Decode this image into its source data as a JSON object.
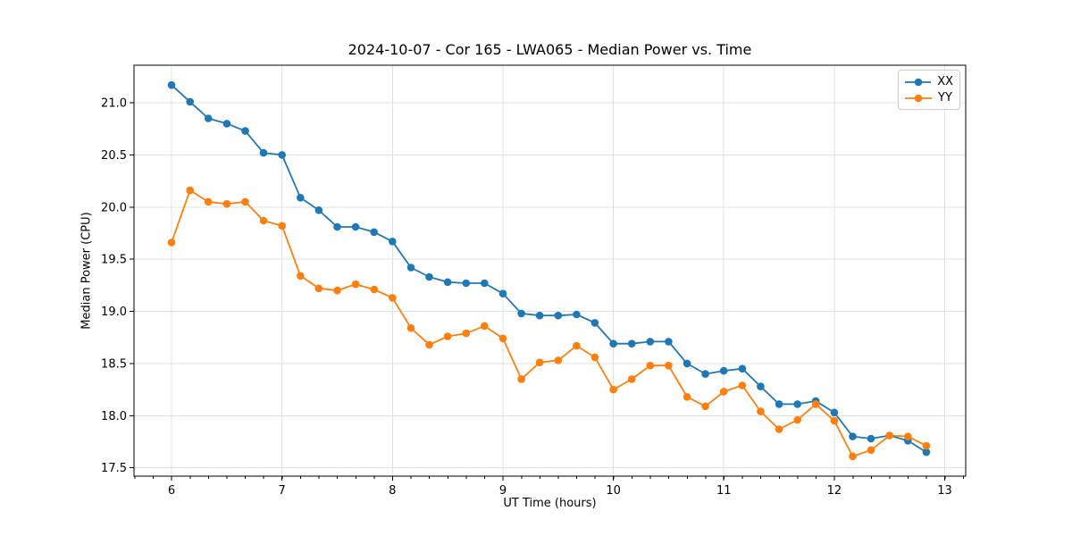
{
  "figure": {
    "background": "#ffffff",
    "frame_color": "#000000",
    "tick_color": "#000000"
  },
  "chart_data": {
    "type": "line",
    "title": "2024-10-07 - Cor 165 - LWA065 - Median Power vs. Time",
    "xlabel": "UT Time (hours)",
    "ylabel": "Median Power (CPU)",
    "xlim": [
      5.66,
      13.19
    ],
    "ylim": [
      17.42,
      21.36
    ],
    "xticks": [
      6,
      7,
      8,
      9,
      10,
      11,
      12,
      13
    ],
    "xtick_labels": [
      "6",
      "7",
      "8",
      "9",
      "10",
      "11",
      "12",
      "13"
    ],
    "yticks": [
      17.5,
      18.0,
      18.5,
      19.0,
      19.5,
      20.0,
      20.5,
      21.0
    ],
    "ytick_labels": [
      "17.5",
      "18.0",
      "18.5",
      "19.0",
      "19.5",
      "20.0",
      "20.5",
      "21.0"
    ],
    "x_minor_tick_step": 0.1667,
    "grid": true,
    "grid_color": "#e0e0e0",
    "legend": {
      "position": "upper-right",
      "entries": [
        "XX",
        "YY"
      ]
    },
    "x": [
      6.0,
      6.167,
      6.333,
      6.5,
      6.667,
      6.833,
      7.0,
      7.167,
      7.333,
      7.5,
      7.667,
      7.833,
      8.0,
      8.167,
      8.333,
      8.5,
      8.667,
      8.833,
      9.0,
      9.167,
      9.333,
      9.5,
      9.667,
      9.833,
      10.0,
      10.167,
      10.333,
      10.5,
      10.667,
      10.833,
      11.0,
      11.167,
      11.333,
      11.5,
      11.667,
      11.833,
      12.0,
      12.167,
      12.333,
      12.5,
      12.667,
      12.833
    ],
    "series": [
      {
        "name": "XX",
        "color": "#1f77b4",
        "values": [
          21.17,
          21.01,
          20.85,
          20.8,
          20.73,
          20.52,
          20.5,
          20.09,
          19.97,
          19.81,
          19.81,
          19.76,
          19.67,
          19.42,
          19.33,
          19.28,
          19.27,
          19.27,
          19.17,
          18.98,
          18.96,
          18.96,
          18.97,
          18.89,
          18.69,
          18.69,
          18.71,
          18.71,
          18.5,
          18.4,
          18.43,
          18.45,
          18.28,
          18.11,
          18.11,
          18.14,
          18.03,
          17.8,
          17.78,
          17.81,
          17.76,
          17.65
        ]
      },
      {
        "name": "YY",
        "color": "#ff7f0e",
        "values": [
          19.66,
          20.16,
          20.05,
          20.03,
          20.05,
          19.87,
          19.82,
          19.34,
          19.22,
          19.2,
          19.26,
          19.21,
          19.13,
          18.84,
          18.68,
          18.76,
          18.79,
          18.86,
          18.74,
          18.35,
          18.51,
          18.53,
          18.67,
          18.56,
          18.25,
          18.35,
          18.48,
          18.48,
          18.18,
          18.09,
          18.23,
          18.29,
          18.04,
          17.87,
          17.96,
          18.11,
          17.95,
          17.61,
          17.67,
          17.81,
          17.8,
          17.71
        ]
      }
    ]
  }
}
